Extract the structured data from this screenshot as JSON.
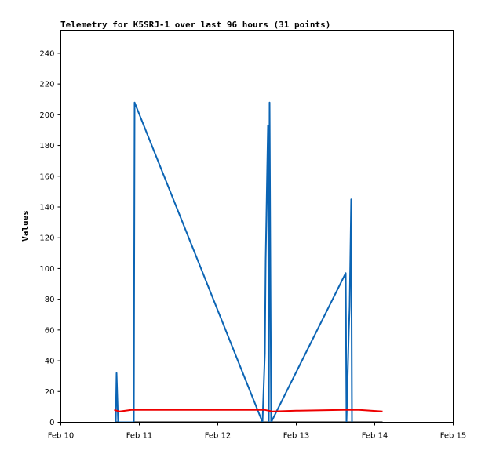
{
  "chart_data": {
    "type": "line",
    "title": "Telemetry for K5SRJ-1 over last 96 hours (31 points)",
    "ylabel": "Values",
    "xlabel": "",
    "x_ticks": [
      "Feb 10",
      "Feb 11",
      "Feb 12",
      "Feb 13",
      "Feb 14",
      "Feb 15"
    ],
    "x_range": [
      0,
      5
    ],
    "y_ticks": [
      0,
      20,
      40,
      60,
      80,
      100,
      120,
      140,
      160,
      180,
      200,
      220,
      240
    ],
    "ylim": [
      0,
      255
    ],
    "grid": false,
    "legend": "none",
    "series": [
      {
        "color": "#000000",
        "x": [
          0.7,
          4.1
        ],
        "y": [
          0,
          0
        ]
      },
      {
        "color": "#0b64b4",
        "x": [
          0.7,
          0.71,
          0.72,
          0.73,
          0.93,
          0.94,
          2.57,
          2.6,
          2.61,
          2.62,
          2.63,
          2.64,
          2.65,
          2.66,
          2.68,
          3.63,
          3.64,
          3.65,
          3.66,
          3.67,
          3.68,
          3.69,
          3.7,
          3.71,
          3.71
        ],
        "y": [
          0,
          32,
          16,
          0,
          0,
          208,
          0,
          45,
          105,
          135,
          165,
          193,
          0,
          208,
          0,
          97,
          0,
          20,
          40,
          60,
          75,
          110,
          145,
          0,
          0
        ]
      },
      {
        "color": "#ee0000",
        "x": [
          0.68,
          0.75,
          0.9,
          1.5,
          2.6,
          2.7,
          3.0,
          3.6,
          3.8,
          4.1
        ],
        "y": [
          8,
          7,
          8,
          8,
          8,
          7,
          7.5,
          8,
          8,
          7
        ]
      }
    ]
  }
}
